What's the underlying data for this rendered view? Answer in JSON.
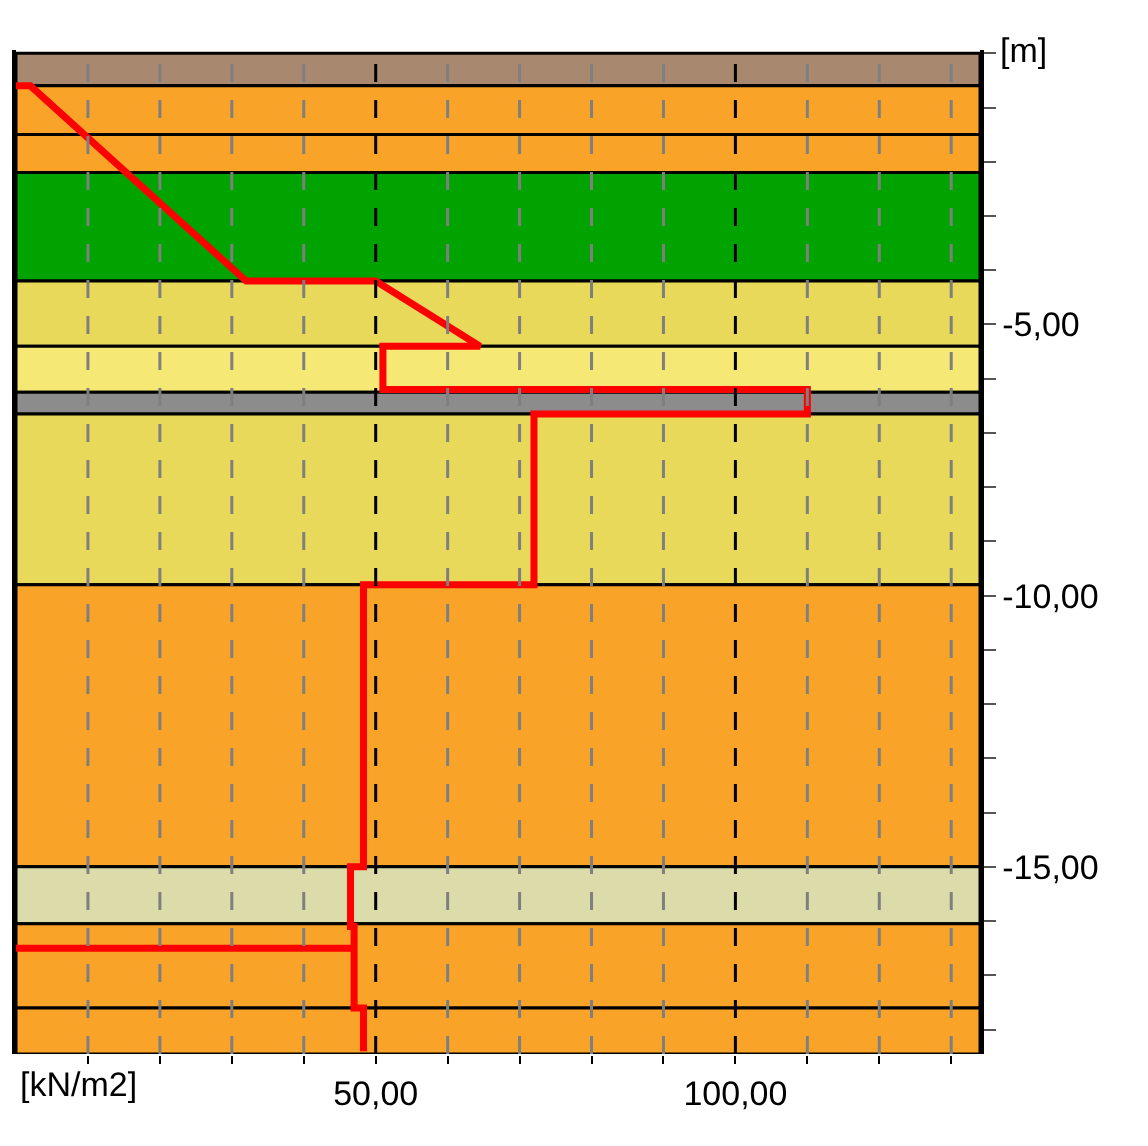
{
  "chart_data": {
    "type": "line",
    "xlabel": "[kN/m2]",
    "ylabel": "[m]",
    "series": [
      {
        "color": "#ff0000",
        "x": [
          0,
          2,
          32,
          50,
          64.5,
          51,
          51,
          110,
          110,
          72,
          72,
          48.3,
          48.3,
          46.5,
          46.5,
          47,
          47,
          0,
          47,
          47,
          48.3,
          48.3
        ],
        "values": [
          -0.6,
          -0.6,
          -4.2,
          -4.2,
          -5.4,
          -5.4,
          -6.2,
          -6.2,
          -6.65,
          -6.65,
          -9.8,
          -9.8,
          -15.0,
          -15.0,
          -16.1,
          -16.1,
          -16.5,
          -16.5,
          -16.5,
          -17.6,
          -17.6,
          -18.4
        ]
      }
    ],
    "xlim": [
      0,
      134
    ],
    "ylim": [
      -18.45,
      0.06
    ],
    "xticks": [
      {
        "value": 10,
        "label": null
      },
      {
        "value": 20,
        "label": null
      },
      {
        "value": 30,
        "label": null
      },
      {
        "value": 40,
        "label": null
      },
      {
        "value": 50,
        "label": "50,00"
      },
      {
        "value": 60,
        "label": null
      },
      {
        "value": 70,
        "label": null
      },
      {
        "value": 80,
        "label": null
      },
      {
        "value": 90,
        "label": null
      },
      {
        "value": 100,
        "label": "100,00"
      },
      {
        "value": 110,
        "label": null
      },
      {
        "value": 120,
        "label": null
      },
      {
        "value": 130,
        "label": null
      }
    ],
    "yticks": [
      {
        "value": 0,
        "label": null
      },
      {
        "value": -1,
        "label": null
      },
      {
        "value": -2,
        "label": null
      },
      {
        "value": -3,
        "label": null
      },
      {
        "value": -4,
        "label": null
      },
      {
        "value": -5,
        "label": "-5,00"
      },
      {
        "value": -6,
        "label": null
      },
      {
        "value": -7,
        "label": null
      },
      {
        "value": -8,
        "label": null
      },
      {
        "value": -9,
        "label": null
      },
      {
        "value": -10,
        "label": "-10,00"
      },
      {
        "value": -11,
        "label": null
      },
      {
        "value": -12,
        "label": null
      },
      {
        "value": -13,
        "label": null
      },
      {
        "value": -14,
        "label": null
      },
      {
        "value": -15,
        "label": "-15,00"
      },
      {
        "value": -16,
        "label": null
      },
      {
        "value": -17,
        "label": null
      },
      {
        "value": -18,
        "label": null
      }
    ],
    "grid": "x",
    "line_style": "solid",
    "bands": [
      {
        "axis": "y",
        "from": 0,
        "to": -0.6,
        "color": "#a8896f"
      },
      {
        "axis": "y",
        "from": -0.6,
        "to": -1.5,
        "color": "#f9a428"
      },
      {
        "axis": "y",
        "from": -1.5,
        "to": -2.2,
        "color": "#f9a428"
      },
      {
        "axis": "y",
        "from": -2.2,
        "to": -4.2,
        "color": "#00a300"
      },
      {
        "axis": "y",
        "from": -4.2,
        "to": -5.4,
        "color": "#e8d95a"
      },
      {
        "axis": "y",
        "from": -5.4,
        "to": -6.25,
        "color": "#f6e874"
      },
      {
        "axis": "y",
        "from": -6.25,
        "to": -6.65,
        "color": "#8c8c8c"
      },
      {
        "axis": "y",
        "from": -6.65,
        "to": -9.8,
        "color": "#e8d95a"
      },
      {
        "axis": "y",
        "from": -9.8,
        "to": -15.0,
        "color": "#f9a428"
      },
      {
        "axis": "y",
        "from": -15.0,
        "to": -16.05,
        "color": "#dcdcaa"
      },
      {
        "axis": "y",
        "from": -16.05,
        "to": -17.6,
        "color": "#f9a428"
      },
      {
        "axis": "y",
        "from": -17.6,
        "to": -18.45,
        "color": "#f9a428"
      }
    ]
  }
}
